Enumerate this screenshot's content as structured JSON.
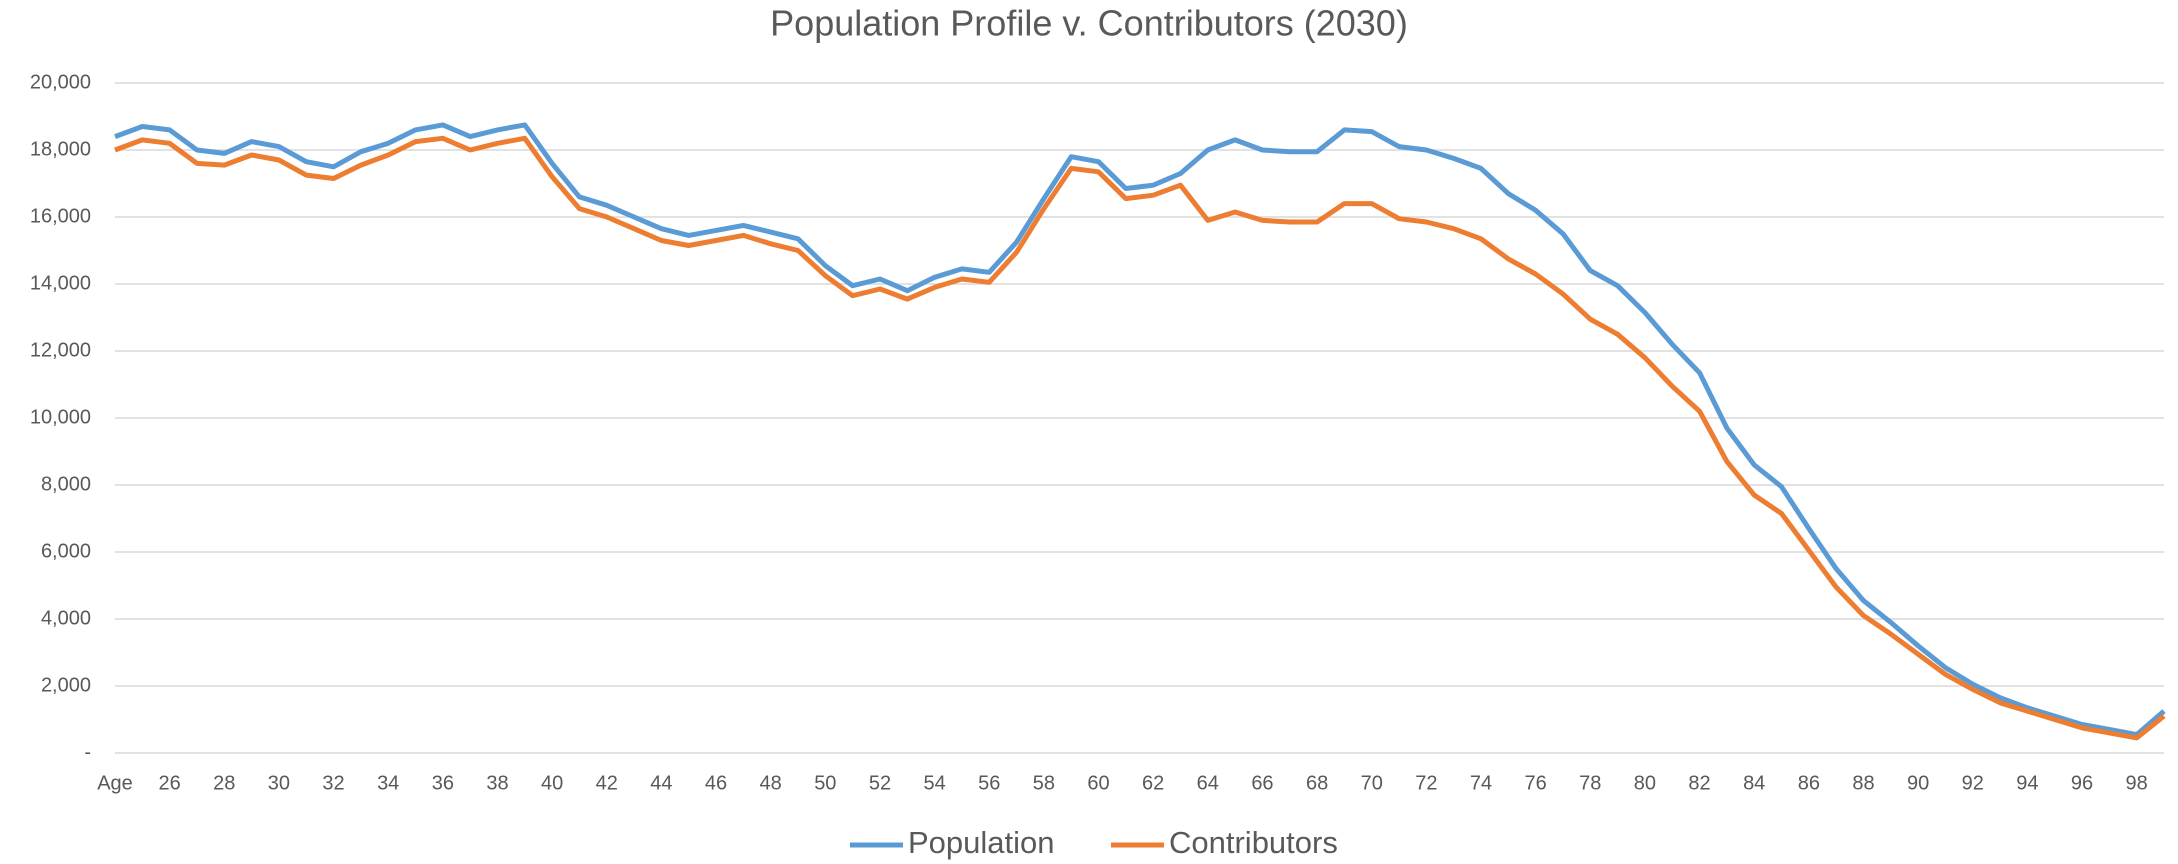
{
  "chart_data": {
    "type": "line",
    "title": "Population Profile v. Contributors (2030)",
    "categories": [
      "Age",
      null,
      "26",
      null,
      "28",
      null,
      "30",
      null,
      "32",
      null,
      "34",
      null,
      "36",
      null,
      "38",
      null,
      "40",
      null,
      "42",
      null,
      "44",
      null,
      "46",
      null,
      "48",
      null,
      "50",
      null,
      "52",
      null,
      "54",
      null,
      "56",
      null,
      "58",
      null,
      "60",
      null,
      "62",
      null,
      "64",
      null,
      "66",
      null,
      "68",
      null,
      "70",
      null,
      "72",
      null,
      "74",
      null,
      "76",
      null,
      "78",
      null,
      "80",
      null,
      "82",
      null,
      "84",
      null,
      "86",
      null,
      "88",
      null,
      "90",
      null,
      "92",
      null,
      "94",
      null,
      "96",
      null,
      "98",
      null
    ],
    "series": [
      {
        "name": "Population",
        "color": "#5b9bd5",
        "values": [
          18400,
          18700,
          18600,
          18000,
          17900,
          18250,
          18100,
          17650,
          17500,
          17950,
          18200,
          18600,
          18750,
          18400,
          18600,
          18750,
          17600,
          16600,
          16350,
          16000,
          15650,
          15450,
          15600,
          15750,
          15550,
          15350,
          14550,
          13950,
          14150,
          13800,
          14200,
          14450,
          14350,
          15250,
          16550,
          17800,
          17650,
          16850,
          16950,
          17300,
          18000,
          18300,
          18000,
          17950,
          17950,
          18600,
          18550,
          18100,
          18000,
          17750,
          17450,
          16700,
          16200,
          15500,
          14400,
          13950,
          13150,
          12200,
          11350,
          9700,
          8600,
          7950,
          6700,
          5500,
          4550,
          3900,
          3200,
          2550,
          2050,
          1650,
          1350,
          1100,
          850,
          700,
          550,
          1250
        ]
      },
      {
        "name": "Contributors",
        "color": "#ed7d31",
        "values": [
          18000,
          18300,
          18200,
          17600,
          17550,
          17850,
          17700,
          17250,
          17150,
          17550,
          17850,
          18250,
          18350,
          18000,
          18200,
          18350,
          17200,
          16250,
          16000,
          15650,
          15300,
          15150,
          15300,
          15450,
          15200,
          15000,
          14250,
          13650,
          13850,
          13550,
          13900,
          14150,
          14050,
          14950,
          16250,
          17450,
          17350,
          16550,
          16650,
          16950,
          15900,
          16150,
          15900,
          15850,
          15850,
          16400,
          16400,
          15950,
          15850,
          15650,
          15350,
          14750,
          14300,
          13700,
          12950,
          12500,
          11800,
          10950,
          10200,
          8700,
          7700,
          7150,
          6050,
          4950,
          4100,
          3550,
          2950,
          2350,
          1900,
          1500,
          1250,
          1000,
          750,
          600,
          450,
          1100
        ]
      }
    ],
    "ylim": [
      0,
      20000
    ],
    "yticks": [
      {
        "value": 0,
        "label": "-"
      },
      {
        "value": 2000,
        "label": "2,000"
      },
      {
        "value": 4000,
        "label": "4,000"
      },
      {
        "value": 6000,
        "label": "6,000"
      },
      {
        "value": 8000,
        "label": "8,000"
      },
      {
        "value": 10000,
        "label": "10,000"
      },
      {
        "value": 12000,
        "label": "12,000"
      },
      {
        "value": 14000,
        "label": "14,000"
      },
      {
        "value": 16000,
        "label": "16,000"
      },
      {
        "value": 18000,
        "label": "18,000"
      },
      {
        "value": 20000,
        "label": "20,000"
      }
    ],
    "grid": true,
    "legend": "bottom"
  }
}
